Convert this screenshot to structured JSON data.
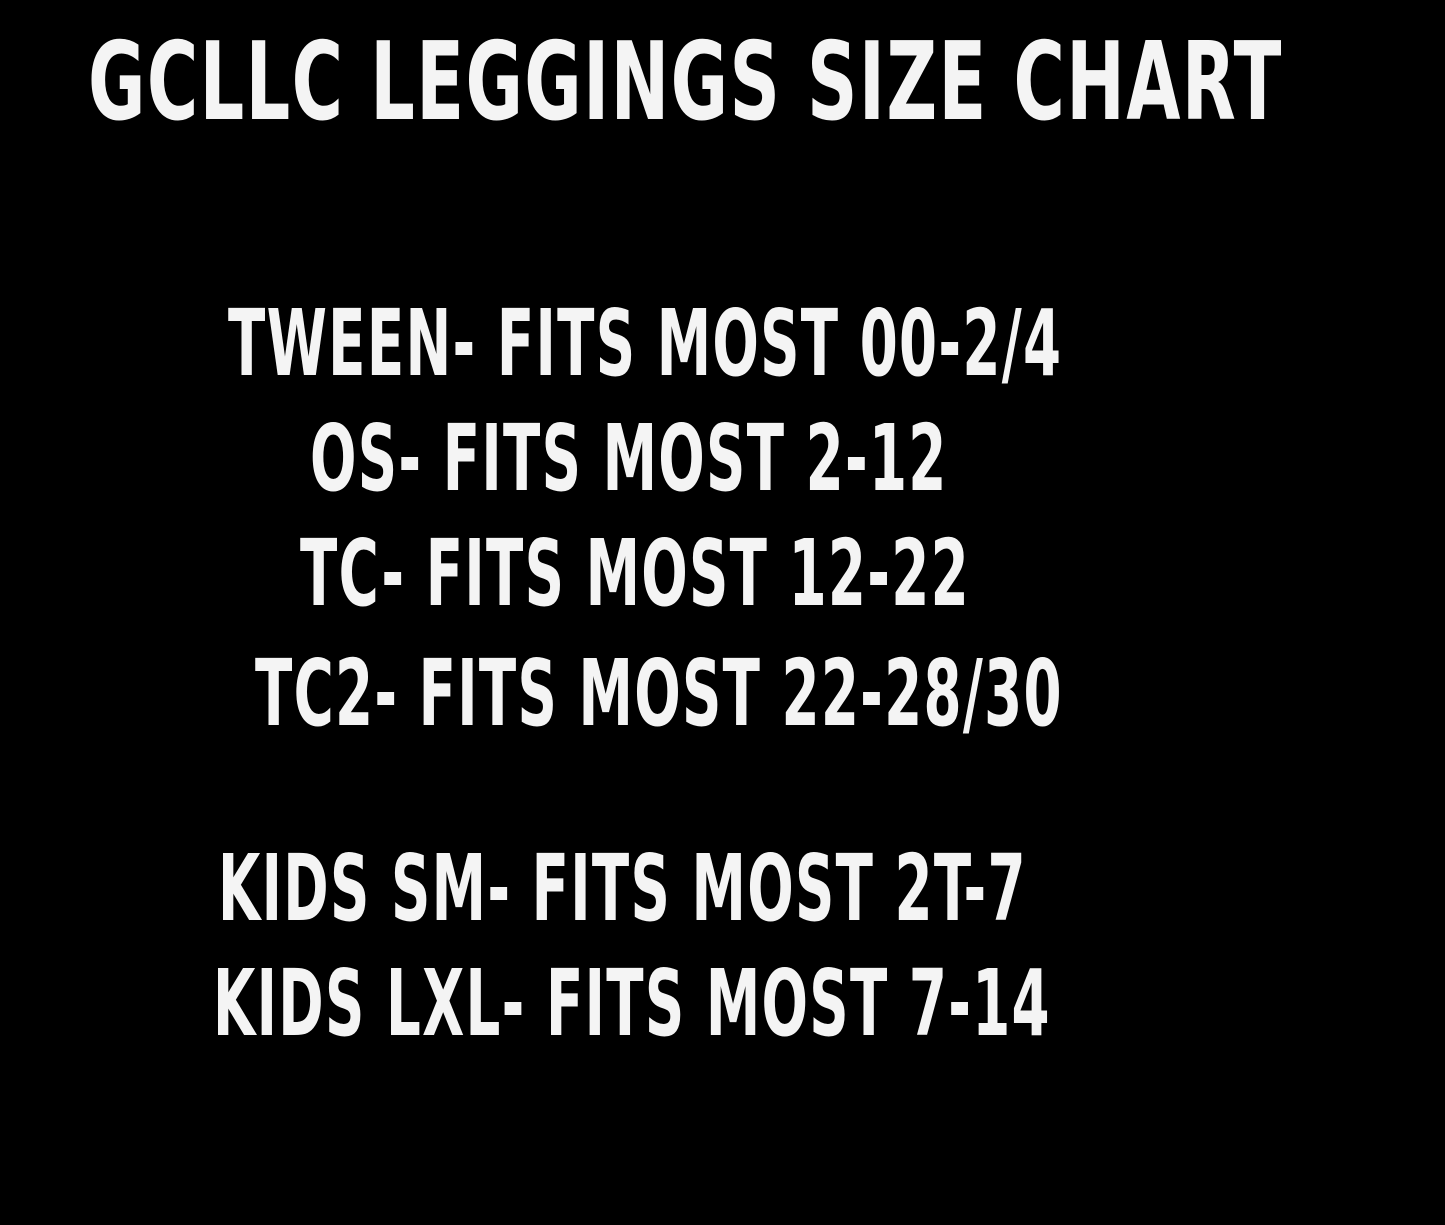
{
  "title": "GCLLC LEGGINGS SIZE CHART",
  "sizes": [
    "TWEEN- FITS MOST 00-2/4",
    "OS- FITS MOST 2-12",
    "TC- FITS MOST 12-22",
    "TC2- FITS MOST 22-28/30",
    "KIDS SM- FITS MOST 2T-7",
    "KIDS LXL- FITS MOST 7-14"
  ],
  "colors": {
    "background": "#000000",
    "text": "#f4f4f4"
  }
}
